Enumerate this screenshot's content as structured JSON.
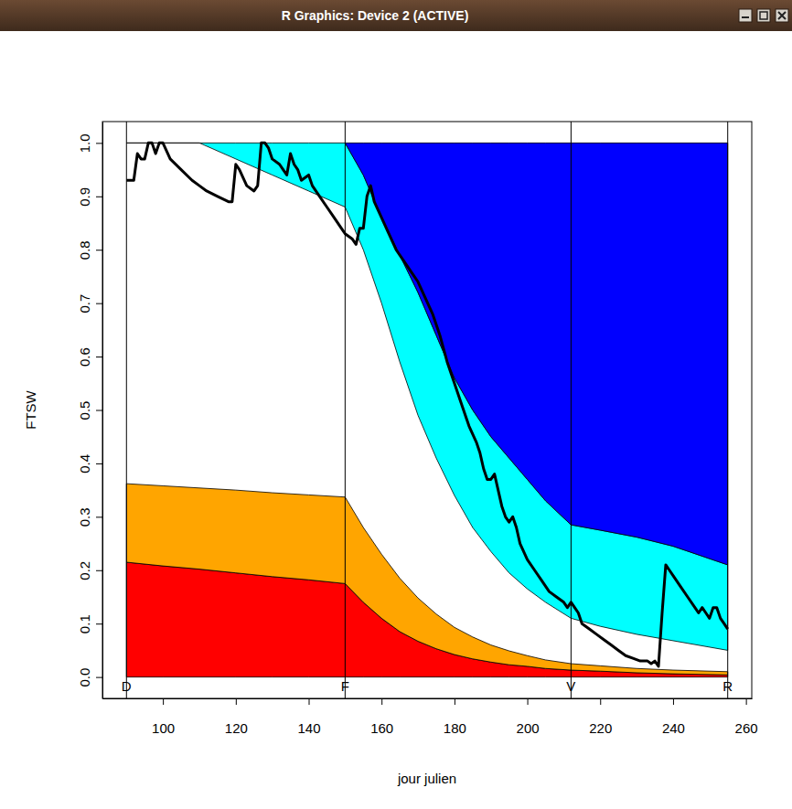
{
  "window": {
    "title": "R Graphics: Device 2 (ACTIVE)"
  },
  "chart_data": {
    "type": "line",
    "xlabel": "jour julien",
    "ylabel": "FTSW",
    "xlim": [
      83.4,
      261.6
    ],
    "ylim": [
      -0.04,
      1.04
    ],
    "xticks": [
      100,
      120,
      140,
      160,
      180,
      200,
      220,
      240,
      260
    ],
    "yticks": [
      {
        "value": 0,
        "label": "0.0"
      },
      0.1,
      0.2,
      0.3,
      0.4,
      0.5,
      0.6,
      0.7,
      0.8,
      0.9,
      {
        "value": 1,
        "label": "1.0"
      }
    ],
    "annotations": [
      {
        "text": "D",
        "x": 90
      },
      {
        "text": "F",
        "x": 150
      },
      {
        "text": "V",
        "x": 212
      },
      {
        "text": "R",
        "x": 255
      }
    ],
    "series": [
      {
        "type": "band",
        "color": "#ff0000",
        "x": [
          90,
          100,
          110,
          120,
          130,
          140,
          150,
          155,
          160,
          165,
          170,
          175,
          180,
          185,
          190,
          195,
          200,
          205,
          212,
          220,
          230,
          240,
          255
        ],
        "low": [
          0,
          0,
          0,
          0,
          0,
          0,
          0,
          0,
          0,
          0,
          0,
          0,
          0,
          0,
          0,
          0,
          0,
          0,
          0,
          0,
          0,
          0,
          0
        ],
        "high": [
          0.215,
          0.208,
          0.202,
          0.195,
          0.188,
          0.182,
          0.175,
          0.14,
          0.11,
          0.085,
          0.067,
          0.053,
          0.042,
          0.034,
          0.028,
          0.023,
          0.02,
          0.016,
          0.013,
          0.011,
          0.008,
          0.006,
          0.004
        ]
      },
      {
        "type": "band",
        "color": "#ffa500",
        "x": [
          90,
          100,
          110,
          120,
          130,
          140,
          150,
          155,
          160,
          165,
          170,
          175,
          180,
          185,
          190,
          195,
          200,
          205,
          212,
          220,
          230,
          240,
          255
        ],
        "low": [
          0.215,
          0.208,
          0.202,
          0.195,
          0.188,
          0.182,
          0.175,
          0.14,
          0.11,
          0.085,
          0.067,
          0.053,
          0.042,
          0.034,
          0.028,
          0.023,
          0.02,
          0.016,
          0.013,
          0.011,
          0.008,
          0.006,
          0.004
        ],
        "high": [
          0.362,
          0.358,
          0.354,
          0.35,
          0.345,
          0.341,
          0.337,
          0.28,
          0.23,
          0.185,
          0.148,
          0.118,
          0.093,
          0.075,
          0.06,
          0.049,
          0.04,
          0.032,
          0.025,
          0.021,
          0.016,
          0.013,
          0.01
        ]
      },
      {
        "type": "band",
        "color": "#00ffff",
        "x": [
          90,
          100,
          110,
          120,
          130,
          140,
          150,
          155,
          160,
          165,
          170,
          175,
          180,
          185,
          190,
          195,
          200,
          205,
          212,
          220,
          230,
          240,
          255
        ],
        "low": [
          1,
          1,
          1,
          0.97,
          0.94,
          0.91,
          0.88,
          0.8,
          0.7,
          0.59,
          0.49,
          0.41,
          0.34,
          0.28,
          0.235,
          0.195,
          0.165,
          0.14,
          0.11,
          0.095,
          0.08,
          0.068,
          0.05
        ],
        "high": [
          1,
          1,
          1,
          1,
          1,
          1,
          1,
          0.94,
          0.86,
          0.79,
          0.72,
          0.64,
          0.56,
          0.5,
          0.45,
          0.41,
          0.37,
          0.33,
          0.285,
          0.275,
          0.262,
          0.245,
          0.21
        ]
      },
      {
        "type": "band",
        "color": "#0000ff",
        "x": [
          90,
          100,
          110,
          120,
          130,
          140,
          150,
          155,
          160,
          165,
          170,
          175,
          180,
          185,
          190,
          195,
          200,
          205,
          212,
          220,
          230,
          240,
          255
        ],
        "low": [
          null,
          null,
          null,
          null,
          null,
          null,
          1,
          0.94,
          0.86,
          0.79,
          0.72,
          0.64,
          0.56,
          0.5,
          0.45,
          0.41,
          0.37,
          0.33,
          0.285,
          0.275,
          0.262,
          0.245,
          0.21
        ],
        "high": [
          null,
          null,
          null,
          null,
          null,
          null,
          1,
          1,
          1,
          1,
          1,
          1,
          1,
          1,
          1,
          1,
          1,
          1,
          1,
          1,
          1,
          1,
          1
        ]
      },
      {
        "type": "line",
        "color": "#000000",
        "x": [
          90,
          92,
          93,
          94,
          95,
          96,
          97,
          98,
          99,
          100,
          102,
          105,
          108,
          110,
          112,
          115,
          118,
          119,
          120,
          121,
          123,
          125,
          126,
          127,
          128,
          129,
          130,
          132,
          133,
          134,
          135,
          136,
          137,
          138,
          140,
          141,
          143,
          145,
          147,
          149,
          150,
          152,
          153,
          154,
          155,
          156,
          157,
          158,
          160,
          162,
          164,
          166,
          168,
          170,
          172,
          174,
          176,
          178,
          180,
          182,
          184,
          186,
          187,
          188,
          189,
          190,
          191,
          192,
          193,
          194,
          195,
          196,
          197,
          198,
          200,
          202,
          204,
          206,
          208,
          210,
          211,
          212,
          213,
          214,
          215,
          217,
          219,
          221,
          223,
          225,
          227,
          229,
          231,
          233,
          234,
          235,
          236,
          237,
          238,
          239,
          240,
          242,
          244,
          246,
          247,
          248,
          249,
          250,
          251,
          252,
          253,
          254,
          255
        ],
        "values": [
          0.93,
          0.93,
          0.98,
          0.97,
          0.97,
          1,
          1,
          0.98,
          1,
          1,
          0.97,
          0.95,
          0.93,
          0.92,
          0.91,
          0.9,
          0.89,
          0.89,
          0.96,
          0.95,
          0.92,
          0.91,
          0.92,
          1,
          1,
          0.99,
          0.97,
          0.96,
          0.95,
          0.94,
          0.98,
          0.96,
          0.95,
          0.93,
          0.94,
          0.92,
          0.9,
          0.88,
          0.86,
          0.84,
          0.83,
          0.82,
          0.81,
          0.84,
          0.84,
          0.9,
          0.92,
          0.89,
          0.86,
          0.83,
          0.8,
          0.78,
          0.76,
          0.74,
          0.71,
          0.68,
          0.64,
          0.59,
          0.55,
          0.51,
          0.47,
          0.44,
          0.42,
          0.39,
          0.37,
          0.37,
          0.38,
          0.35,
          0.32,
          0.3,
          0.29,
          0.3,
          0.28,
          0.25,
          0.22,
          0.2,
          0.18,
          0.16,
          0.15,
          0.14,
          0.13,
          0.14,
          0.13,
          0.12,
          0.1,
          0.09,
          0.08,
          0.07,
          0.06,
          0.05,
          0.04,
          0.035,
          0.03,
          0.03,
          0.025,
          0.03,
          0.02,
          0.12,
          0.21,
          0.2,
          0.19,
          0.17,
          0.15,
          0.13,
          0.12,
          0.13,
          0.12,
          0.11,
          0.13,
          0.13,
          0.11,
          0.1,
          0.09
        ]
      }
    ]
  }
}
